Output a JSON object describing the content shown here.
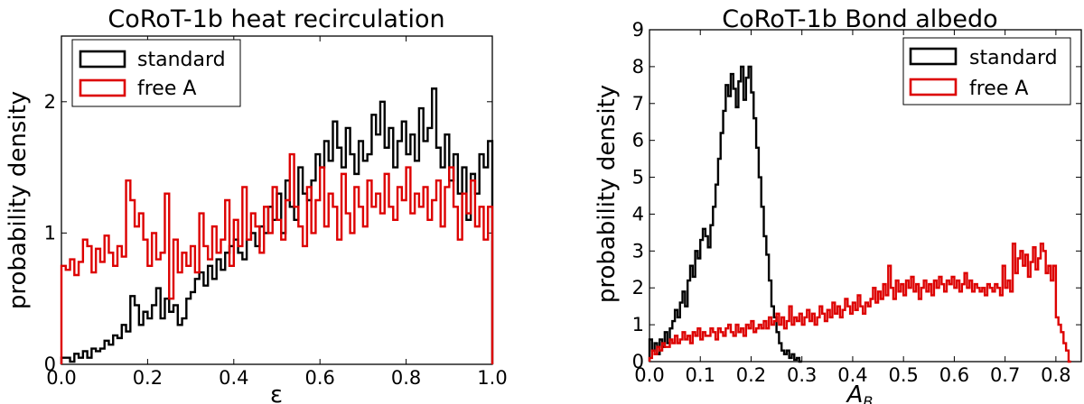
{
  "chart_data": [
    {
      "type": "histogram",
      "title": "CoRoT-1b heat recirculation",
      "xlabel": "ε",
      "ylabel": "probability density",
      "xlim": [
        0.0,
        1.0
      ],
      "ylim": [
        0,
        2.5
      ],
      "xticks": [
        "0.0",
        "0.2",
        "0.4",
        "0.6",
        "0.8",
        "1.0"
      ],
      "yticks": [
        "0",
        "1",
        "2"
      ],
      "legend_position": "top-left",
      "series": [
        {
          "name": "standard",
          "color": "#000000",
          "bin_width": 0.01,
          "values": [
            0.05,
            0.05,
            0.02,
            0.08,
            0.05,
            0.1,
            0.05,
            0.12,
            0.1,
            0.12,
            0.18,
            0.15,
            0.22,
            0.2,
            0.3,
            0.25,
            0.52,
            0.45,
            0.3,
            0.4,
            0.35,
            0.45,
            0.58,
            0.35,
            0.5,
            0.4,
            0.45,
            0.3,
            0.35,
            0.5,
            0.55,
            0.65,
            0.7,
            0.6,
            0.75,
            0.65,
            0.8,
            0.72,
            0.85,
            0.9,
            0.95,
            0.85,
            0.8,
            0.95,
            1.0,
            0.9,
            1.05,
            1.0,
            1.2,
            1.1,
            1.3,
            1.0,
            1.4,
            1.2,
            1.1,
            1.5,
            1.3,
            1.25,
            1.4,
            1.6,
            1.5,
            1.7,
            1.55,
            1.85,
            1.65,
            1.5,
            1.8,
            1.6,
            1.45,
            1.7,
            1.55,
            1.6,
            1.9,
            1.75,
            2.0,
            1.65,
            1.8,
            1.5,
            1.7,
            1.85,
            1.6,
            1.75,
            1.55,
            1.95,
            1.7,
            1.8,
            2.1,
            1.65,
            1.5,
            1.75,
            1.4,
            1.6,
            1.3,
            1.5,
            1.1,
            1.45,
            1.3,
            1.6,
            1.5,
            1.7
          ]
        },
        {
          "name": "free A",
          "color": "#dd0000",
          "bin_width": 0.01,
          "values": [
            0.75,
            0.72,
            0.8,
            0.68,
            0.78,
            0.95,
            0.9,
            0.7,
            0.88,
            0.78,
            0.98,
            0.85,
            0.75,
            0.9,
            0.82,
            1.4,
            1.25,
            1.05,
            1.15,
            0.95,
            0.75,
            1.0,
            0.8,
            0.85,
            1.3,
            0.5,
            0.95,
            0.7,
            0.85,
            0.75,
            0.9,
            0.7,
            1.15,
            0.9,
            0.8,
            1.05,
            0.85,
            0.95,
            1.25,
            0.75,
            1.1,
            0.9,
            1.35,
            0.95,
            1.15,
            1.05,
            0.85,
            1.2,
            1.0,
            1.35,
            1.1,
            0.95,
            1.25,
            1.6,
            1.2,
            1.05,
            0.9,
            1.35,
            1.0,
            1.25,
            1.5,
            1.05,
            1.3,
            1.2,
            0.95,
            1.45,
            1.15,
            1.0,
            1.35,
            1.2,
            1.05,
            1.4,
            1.2,
            1.3,
            1.15,
            1.45,
            1.2,
            1.1,
            1.35,
            1.25,
            1.5,
            1.15,
            1.3,
            1.2,
            1.35,
            1.1,
            1.25,
            1.4,
            1.05,
            1.35,
            1.5,
            1.2,
            0.95,
            1.3,
            1.15,
            1.4,
            1.05,
            1.2,
            0.95,
            1.2
          ]
        }
      ]
    },
    {
      "type": "histogram",
      "title": "CoRoT-1b Bond albedo",
      "xlabel": "A_B",
      "ylabel": "probability density",
      "xlim": [
        0.0,
        0.85
      ],
      "ylim": [
        0,
        9
      ],
      "xticks": [
        "0.0",
        "0.1",
        "0.2",
        "0.3",
        "0.4",
        "0.5",
        "0.6",
        "0.7",
        "0.8"
      ],
      "yticks": [
        "0",
        "1",
        "2",
        "3",
        "4",
        "5",
        "6",
        "7",
        "8",
        "9"
      ],
      "legend_position": "top-right",
      "series": [
        {
          "name": "standard",
          "color": "#000000",
          "bin_start": 0.0,
          "bin_width": 0.005,
          "values": [
            0.6,
            0.3,
            0.5,
            0.2,
            0.6,
            0.4,
            0.8,
            0.5,
            0.9,
            1.1,
            1.4,
            1.2,
            1.6,
            1.9,
            1.5,
            2.2,
            2.6,
            2.3,
            3.0,
            2.8,
            3.3,
            3.6,
            3.4,
            3.1,
            3.7,
            4.2,
            4.8,
            5.5,
            6.2,
            6.8,
            7.5,
            7.2,
            7.8,
            7.4,
            6.9,
            7.6,
            8.0,
            7.1,
            7.7,
            8.0,
            7.3,
            6.6,
            5.8,
            5.0,
            4.2,
            3.4,
            2.9,
            2.2,
            1.5,
            1.2,
            0.8,
            0.5,
            0.3,
            0.2,
            0.3,
            0.1,
            0.2,
            0.05,
            0.1,
            0.0
          ]
        },
        {
          "name": "free A",
          "color": "#dd0000",
          "bin_start": 0.0,
          "bin_width": 0.005,
          "values": [
            0.1,
            0.3,
            0.2,
            0.4,
            0.3,
            0.5,
            0.4,
            0.4,
            0.6,
            0.5,
            0.7,
            0.5,
            0.6,
            0.8,
            0.6,
            0.7,
            0.5,
            0.8,
            0.7,
            0.9,
            0.6,
            0.8,
            0.7,
            0.7,
            0.9,
            0.8,
            0.6,
            0.9,
            0.8,
            0.7,
            0.9,
            1.0,
            0.8,
            0.7,
            1.0,
            0.8,
            0.9,
            0.7,
            1.0,
            0.9,
            1.1,
            0.8,
            0.9,
            1.0,
            0.9,
            1.1,
            0.9,
            1.2,
            1.0,
            1.1,
            1.3,
            1.0,
            1.2,
            0.9,
            1.1,
            1.5,
            1.0,
            1.2,
            1.1,
            1.3,
            1.0,
            1.2,
            1.4,
            1.1,
            1.3,
            1.0,
            1.2,
            1.5,
            1.3,
            1.1,
            1.4,
            1.2,
            1.6,
            1.3,
            1.5,
            1.2,
            1.4,
            1.7,
            1.5,
            1.3,
            1.6,
            1.4,
            1.8,
            1.5,
            1.3,
            1.6,
            1.5,
            1.7,
            2.0,
            1.6,
            1.9,
            1.7,
            2.1,
            1.8,
            2.6,
            2.0,
            1.7,
            2.2,
            1.9,
            2.1,
            1.8,
            2.2,
            2.0,
            2.3,
            1.9,
            2.1,
            1.7,
            2.0,
            2.2,
            1.9,
            2.1,
            1.8,
            2.2,
            2.0,
            2.3,
            2.1,
            1.9,
            2.2,
            2.1,
            2.3,
            2.0,
            2.2,
            1.9,
            2.1,
            2.4,
            2.0,
            2.2,
            1.9,
            2.1,
            2.0,
            1.9,
            2.0,
            1.8,
            2.1,
            2.0,
            1.9,
            2.1,
            2.0,
            1.8,
            2.6,
            2.0,
            2.2,
            1.9,
            3.2,
            2.4,
            2.8,
            3.0,
            2.6,
            2.9,
            2.3,
            2.7,
            3.1,
            2.5,
            2.8,
            3.2,
            3.0,
            2.4,
            2.6,
            2.2,
            2.6,
            1.2,
            1.0,
            0.8,
            0.5,
            0.3,
            0.0
          ]
        }
      ]
    }
  ]
}
